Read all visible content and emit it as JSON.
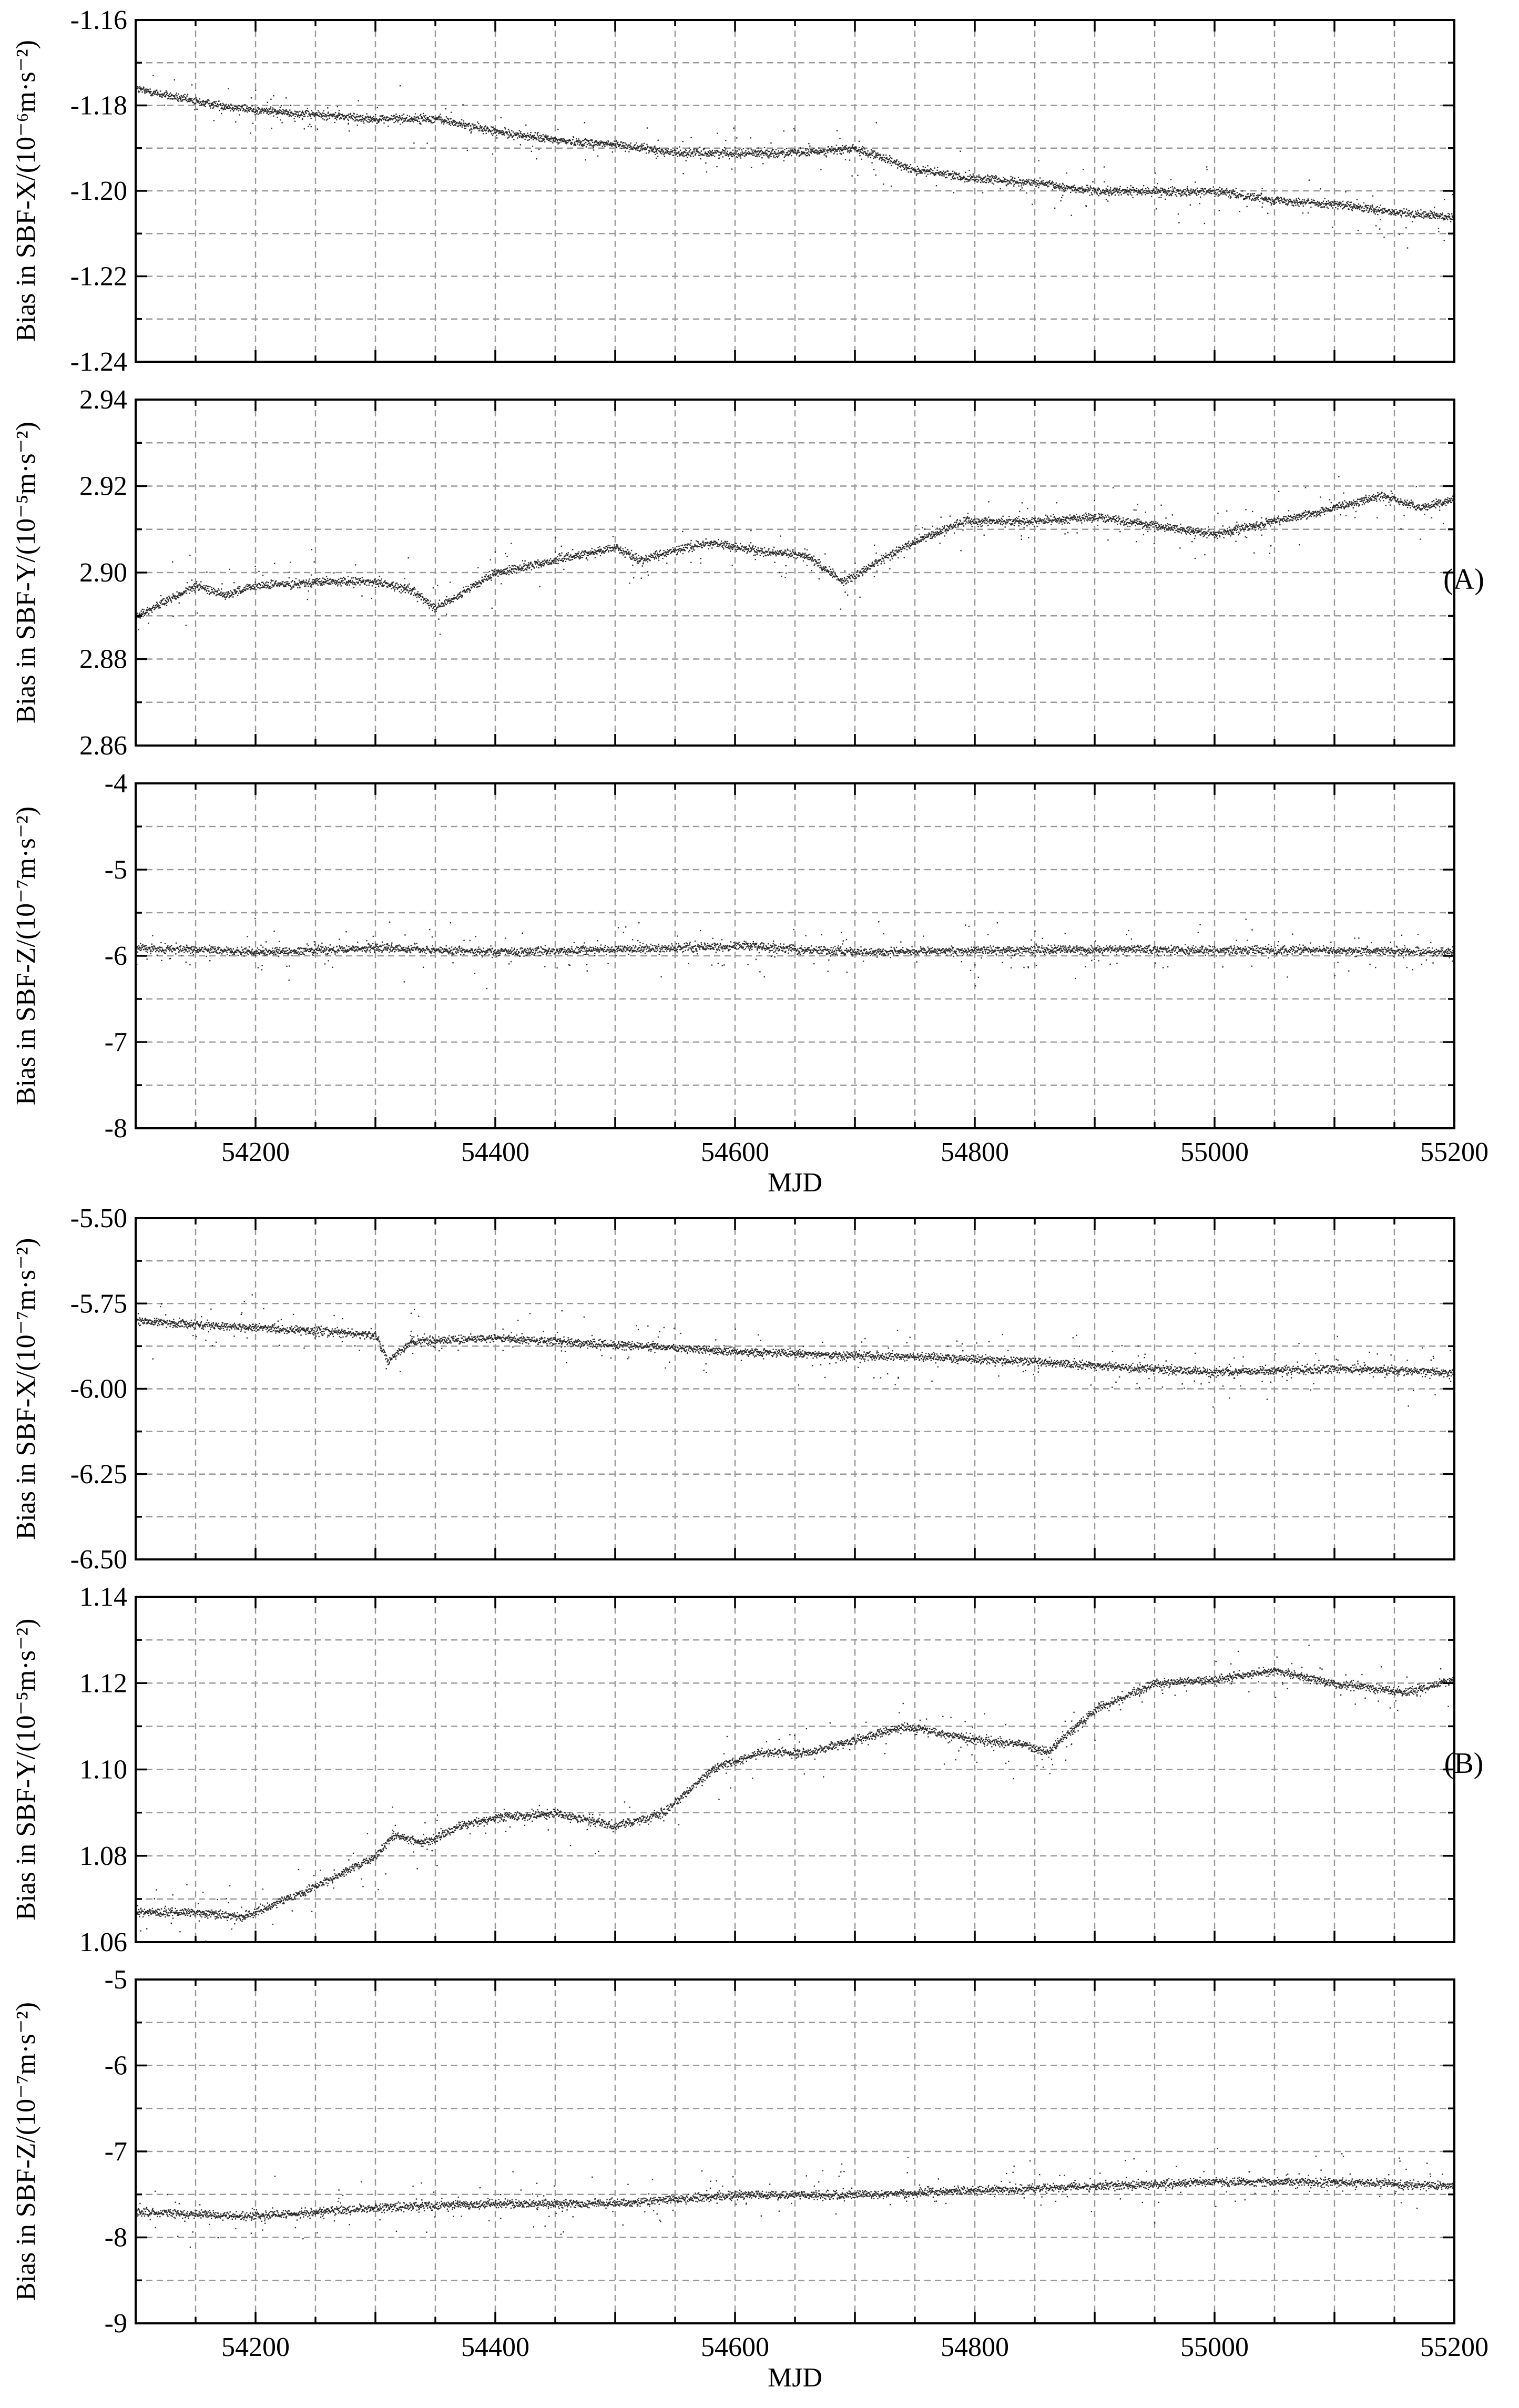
{
  "figure": {
    "groups": [
      {
        "label": "(A)",
        "xlabel": "MJD"
      },
      {
        "label": "(B)",
        "xlabel": "MJD"
      }
    ]
  },
  "chart_data": [
    {
      "type": "scatter",
      "group": "(A)",
      "ylabel": "Bias in SBF-X/(10⁻⁶m·s⁻²)",
      "xlim": [
        54100,
        55200
      ],
      "ylim": [
        -1.24,
        -1.16
      ],
      "xticks": [
        "54200",
        "54400",
        "54600",
        "54800",
        "55000",
        "55200"
      ],
      "yticks": [
        "-1.16",
        "-1.18",
        "-1.20",
        "-1.22",
        "-1.24"
      ],
      "show_xticklabels": false,
      "grid": true,
      "series": [
        {
          "x": [
            54100,
            54150,
            54200,
            54250,
            54300,
            54350,
            54400,
            54450,
            54500,
            54550,
            54600,
            54650,
            54700,
            54750,
            54800,
            54850,
            54900,
            54950,
            55000,
            55050,
            55100,
            55150,
            55200
          ],
          "y": [
            -1.176,
            -1.179,
            -1.181,
            -1.182,
            -1.183,
            -1.183,
            -1.186,
            -1.188,
            -1.189,
            -1.191,
            -1.191,
            -1.191,
            -1.19,
            -1.195,
            -1.197,
            -1.198,
            -1.2,
            -1.2,
            -1.2,
            -1.202,
            -1.203,
            -1.205,
            -1.206
          ]
        }
      ]
    },
    {
      "type": "scatter",
      "group": "(A)",
      "ylabel": "Bias in SBF-Y/(10⁻⁵m·s⁻²)",
      "xlim": [
        54100,
        55200
      ],
      "ylim": [
        2.86,
        2.94
      ],
      "xticks": [
        "54200",
        "54400",
        "54600",
        "54800",
        "55000",
        "55200"
      ],
      "yticks": [
        "2.94",
        "2.92",
        "2.90",
        "2.88",
        "2.86"
      ],
      "show_xticklabels": false,
      "grid": true,
      "series": [
        {
          "x": [
            54100,
            54150,
            54175,
            54200,
            54250,
            54300,
            54330,
            54350,
            54370,
            54400,
            54450,
            54500,
            54520,
            54560,
            54580,
            54620,
            54660,
            54690,
            54740,
            54790,
            54850,
            54900,
            54950,
            55000,
            55050,
            55100,
            55140,
            55170,
            55200
          ],
          "y": [
            2.89,
            2.897,
            2.895,
            2.897,
            2.898,
            2.898,
            2.896,
            2.892,
            2.895,
            2.9,
            2.903,
            2.906,
            2.903,
            2.906,
            2.907,
            2.905,
            2.904,
            2.898,
            2.906,
            2.912,
            2.912,
            2.913,
            2.911,
            2.909,
            2.912,
            2.915,
            2.918,
            2.915,
            2.917
          ]
        }
      ]
    },
    {
      "type": "scatter",
      "group": "(A)",
      "ylabel": "Bias in SBF-Z/(10⁻⁷m·s⁻²)",
      "xlabel": "MJD",
      "xlim": [
        54100,
        55200
      ],
      "ylim": [
        -8,
        -4
      ],
      "xticks": [
        "54200",
        "54400",
        "54600",
        "54800",
        "55000",
        "55200"
      ],
      "yticks": [
        "-4",
        "-5",
        "-6",
        "-7",
        "-8"
      ],
      "show_xticklabels": true,
      "grid": true,
      "series": [
        {
          "x": [
            54100,
            54200,
            54300,
            54400,
            54500,
            54600,
            54700,
            54800,
            54900,
            55000,
            55100,
            55200
          ],
          "y": [
            -5.9,
            -5.95,
            -5.9,
            -5.95,
            -5.92,
            -5.88,
            -5.95,
            -5.93,
            -5.92,
            -5.93,
            -5.93,
            -5.95
          ]
        }
      ]
    },
    {
      "type": "scatter",
      "group": "(B)",
      "ylabel": "Bias in SBF-X/(10⁻⁷m·s⁻²)",
      "xlim": [
        54100,
        55200
      ],
      "ylim": [
        -6.5,
        -5.5
      ],
      "xticks": [
        "54200",
        "54400",
        "54600",
        "54800",
        "55000",
        "55200"
      ],
      "yticks": [
        "-5.50",
        "-5.75",
        "-6.00",
        "-6.25",
        "-6.50"
      ],
      "show_xticklabels": false,
      "grid": true,
      "series": [
        {
          "x": [
            54100,
            54200,
            54300,
            54310,
            54330,
            54400,
            54500,
            54600,
            54700,
            54800,
            54900,
            55000,
            55100,
            55200
          ],
          "y": [
            -5.8,
            -5.82,
            -5.84,
            -5.92,
            -5.86,
            -5.85,
            -5.87,
            -5.89,
            -5.9,
            -5.91,
            -5.93,
            -5.95,
            -5.94,
            -5.95
          ]
        }
      ]
    },
    {
      "type": "scatter",
      "group": "(B)",
      "ylabel": "Bias in SBF-Y/(10⁻⁵m·s⁻²)",
      "xlim": [
        54100,
        55200
      ],
      "ylim": [
        1.06,
        1.14
      ],
      "xticks": [
        "54200",
        "54400",
        "54600",
        "54800",
        "55000",
        "55200"
      ],
      "yticks": [
        "1.14",
        "1.12",
        "1.10",
        "1.08",
        "1.06"
      ],
      "show_xticklabels": false,
      "grid": true,
      "series": [
        {
          "x": [
            54100,
            54150,
            54190,
            54250,
            54300,
            54315,
            54340,
            54370,
            54400,
            54450,
            54500,
            54540,
            54580,
            54620,
            54660,
            54700,
            54740,
            54800,
            54840,
            54860,
            54900,
            54950,
            55000,
            55050,
            55100,
            55160,
            55200
          ],
          "y": [
            1.067,
            1.067,
            1.066,
            1.073,
            1.08,
            1.085,
            1.083,
            1.087,
            1.089,
            1.09,
            1.087,
            1.09,
            1.1,
            1.104,
            1.104,
            1.107,
            1.11,
            1.107,
            1.106,
            1.104,
            1.114,
            1.12,
            1.121,
            1.123,
            1.12,
            1.118,
            1.121
          ]
        }
      ]
    },
    {
      "type": "scatter",
      "group": "(B)",
      "ylabel": "Bias in SBF-Z/(10⁻⁷m·s⁻²)",
      "xlabel": "MJD",
      "xlim": [
        54100,
        55200
      ],
      "ylim": [
        -9,
        -5
      ],
      "xticks": [
        "54200",
        "54400",
        "54600",
        "54800",
        "55000",
        "55200"
      ],
      "yticks": [
        "-5",
        "-6",
        "-7",
        "-8",
        "-9"
      ],
      "show_xticklabels": true,
      "grid": true,
      "series": [
        {
          "x": [
            54100,
            54200,
            54300,
            54400,
            54500,
            54600,
            54700,
            54800,
            54900,
            55000,
            55100,
            55200
          ],
          "y": [
            -7.7,
            -7.75,
            -7.65,
            -7.6,
            -7.6,
            -7.5,
            -7.5,
            -7.45,
            -7.4,
            -7.35,
            -7.35,
            -7.4
          ]
        }
      ]
    }
  ]
}
